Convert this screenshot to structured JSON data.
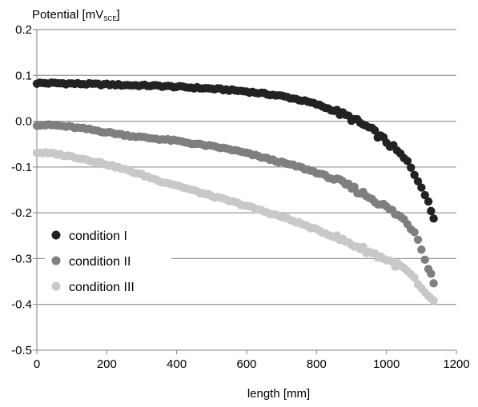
{
  "chart_data": {
    "type": "scatter",
    "title": "",
    "ylabel": "Potential [mV",
    "ylabel_subscript": "SCE",
    "ylabel_suffix": "]",
    "xlabel": "length [mm]",
    "xlim": [
      0,
      1200
    ],
    "ylim": [
      -0.5,
      0.2
    ],
    "x_ticks": [
      0,
      200,
      400,
      600,
      800,
      1000,
      1200
    ],
    "y_ticks": [
      0.2,
      0.1,
      0.0,
      -0.1,
      -0.2,
      -0.3,
      -0.4,
      -0.5
    ],
    "x_tick_labels": [
      "0",
      "200",
      "400",
      "600",
      "800",
      "1000",
      "1200"
    ],
    "y_tick_labels": [
      "0.2",
      "0.1",
      "0.0",
      "-0.1",
      "-0.2",
      "-0.3",
      "-0.4",
      "-0.5"
    ],
    "grid": "horizontal",
    "legend_position": "bottom-left",
    "series": [
      {
        "name": "condition I",
        "color": "#222222",
        "points": [
          [
            0,
            0.083
          ],
          [
            50,
            0.083
          ],
          [
            100,
            0.082
          ],
          [
            150,
            0.081
          ],
          [
            200,
            0.08
          ],
          [
            250,
            0.079
          ],
          [
            300,
            0.078
          ],
          [
            350,
            0.077
          ],
          [
            400,
            0.075
          ],
          [
            450,
            0.073
          ],
          [
            500,
            0.071
          ],
          [
            550,
            0.068
          ],
          [
            600,
            0.065
          ],
          [
            650,
            0.06
          ],
          [
            700,
            0.055
          ],
          [
            750,
            0.047
          ],
          [
            800,
            0.037
          ],
          [
            850,
            0.023
          ],
          [
            900,
            0.006
          ],
          [
            950,
            -0.015
          ],
          [
            1000,
            -0.045
          ],
          [
            1030,
            -0.065
          ],
          [
            1060,
            -0.09
          ],
          [
            1080,
            -0.115
          ],
          [
            1100,
            -0.14
          ],
          [
            1120,
            -0.18
          ],
          [
            1135,
            -0.21
          ]
        ]
      },
      {
        "name": "condition II",
        "color": "#7f7f7f",
        "points": [
          [
            0,
            -0.008
          ],
          [
            50,
            -0.009
          ],
          [
            100,
            -0.013
          ],
          [
            150,
            -0.018
          ],
          [
            200,
            -0.024
          ],
          [
            250,
            -0.03
          ],
          [
            300,
            -0.035
          ],
          [
            350,
            -0.039
          ],
          [
            400,
            -0.043
          ],
          [
            450,
            -0.049
          ],
          [
            500,
            -0.055
          ],
          [
            550,
            -0.061
          ],
          [
            600,
            -0.07
          ],
          [
            650,
            -0.08
          ],
          [
            700,
            -0.09
          ],
          [
            750,
            -0.1
          ],
          [
            800,
            -0.112
          ],
          [
            850,
            -0.127
          ],
          [
            900,
            -0.145
          ],
          [
            950,
            -0.165
          ],
          [
            1000,
            -0.188
          ],
          [
            1050,
            -0.215
          ],
          [
            1080,
            -0.24
          ],
          [
            1100,
            -0.275
          ],
          [
            1120,
            -0.32
          ],
          [
            1135,
            -0.35
          ]
        ]
      },
      {
        "name": "condition III",
        "color": "#c8c8c8",
        "points": [
          [
            0,
            -0.068
          ],
          [
            50,
            -0.071
          ],
          [
            100,
            -0.077
          ],
          [
            150,
            -0.085
          ],
          [
            200,
            -0.094
          ],
          [
            250,
            -0.105
          ],
          [
            300,
            -0.117
          ],
          [
            350,
            -0.13
          ],
          [
            400,
            -0.14
          ],
          [
            450,
            -0.152
          ],
          [
            500,
            -0.163
          ],
          [
            550,
            -0.174
          ],
          [
            600,
            -0.185
          ],
          [
            650,
            -0.197
          ],
          [
            700,
            -0.209
          ],
          [
            750,
            -0.222
          ],
          [
            800,
            -0.237
          ],
          [
            850,
            -0.252
          ],
          [
            900,
            -0.268
          ],
          [
            950,
            -0.285
          ],
          [
            1000,
            -0.302
          ],
          [
            1050,
            -0.322
          ],
          [
            1080,
            -0.345
          ],
          [
            1100,
            -0.37
          ],
          [
            1120,
            -0.385
          ],
          [
            1135,
            -0.39
          ]
        ]
      }
    ]
  }
}
